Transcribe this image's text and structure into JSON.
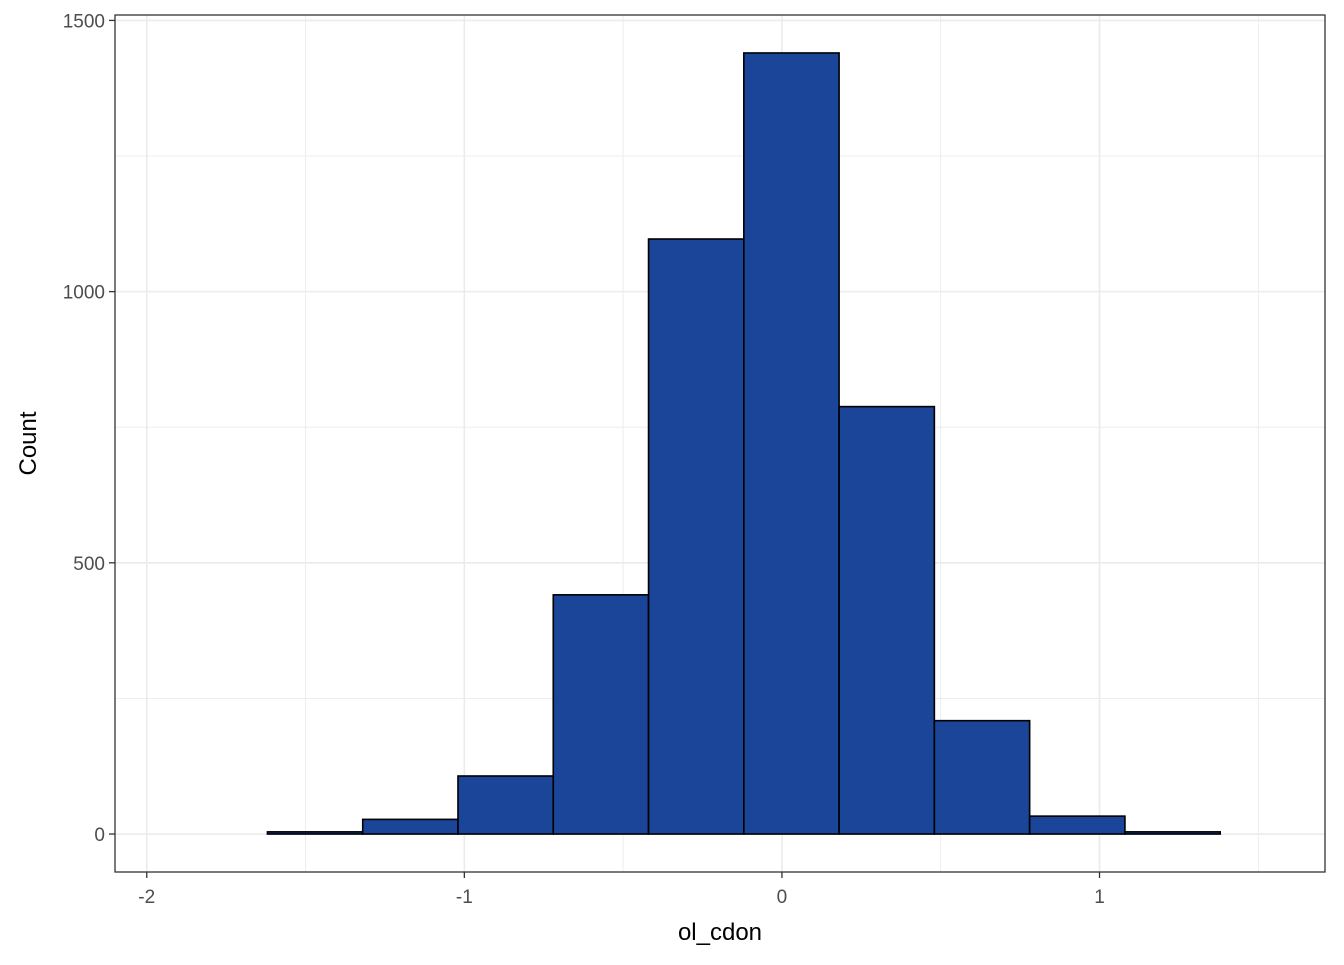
{
  "chart_data": {
    "type": "bar",
    "title": "",
    "xlabel": "ol_cdon",
    "ylabel": "Count",
    "bin_width": 0.3,
    "bins": [
      {
        "x0": -1.92,
        "x1": -1.62,
        "count": 0
      },
      {
        "x0": -1.62,
        "x1": -1.32,
        "count": 4
      },
      {
        "x0": -1.32,
        "x1": -1.02,
        "count": 27
      },
      {
        "x0": -1.02,
        "x1": -0.72,
        "count": 107
      },
      {
        "x0": -0.72,
        "x1": -0.42,
        "count": 441
      },
      {
        "x0": -0.42,
        "x1": -0.12,
        "count": 1097
      },
      {
        "x0": -0.12,
        "x1": 0.18,
        "count": 1440
      },
      {
        "x0": 0.18,
        "x1": 0.48,
        "count": 788
      },
      {
        "x0": 0.48,
        "x1": 0.78,
        "count": 209
      },
      {
        "x0": 0.78,
        "x1": 1.08,
        "count": 33
      },
      {
        "x0": 1.08,
        "x1": 1.38,
        "count": 4
      },
      {
        "x0": 1.38,
        "x1": 1.68,
        "count": 0
      }
    ],
    "xlim": [
      -2.1,
      1.71
    ],
    "ylim": [
      -70,
      1510
    ],
    "x_ticks": [
      -2,
      -1,
      0,
      1
    ],
    "x_tick_labels": [
      "-2",
      "-1",
      "0",
      "1"
    ],
    "x_minor_ticks": [
      -1.5,
      -0.5,
      0.5,
      1.5
    ],
    "y_ticks": [
      0,
      500,
      1000,
      1500
    ],
    "y_tick_labels": [
      "0",
      "500",
      "1000",
      "1500"
    ],
    "y_minor_ticks": [
      250,
      750,
      1250
    ],
    "grid": true,
    "colors": {
      "bar_fill": "#1a4599",
      "bar_outline": "#000000",
      "grid": "#ebebeb",
      "panel_border": "#333333",
      "tick_text": "#4d4d4d"
    }
  }
}
